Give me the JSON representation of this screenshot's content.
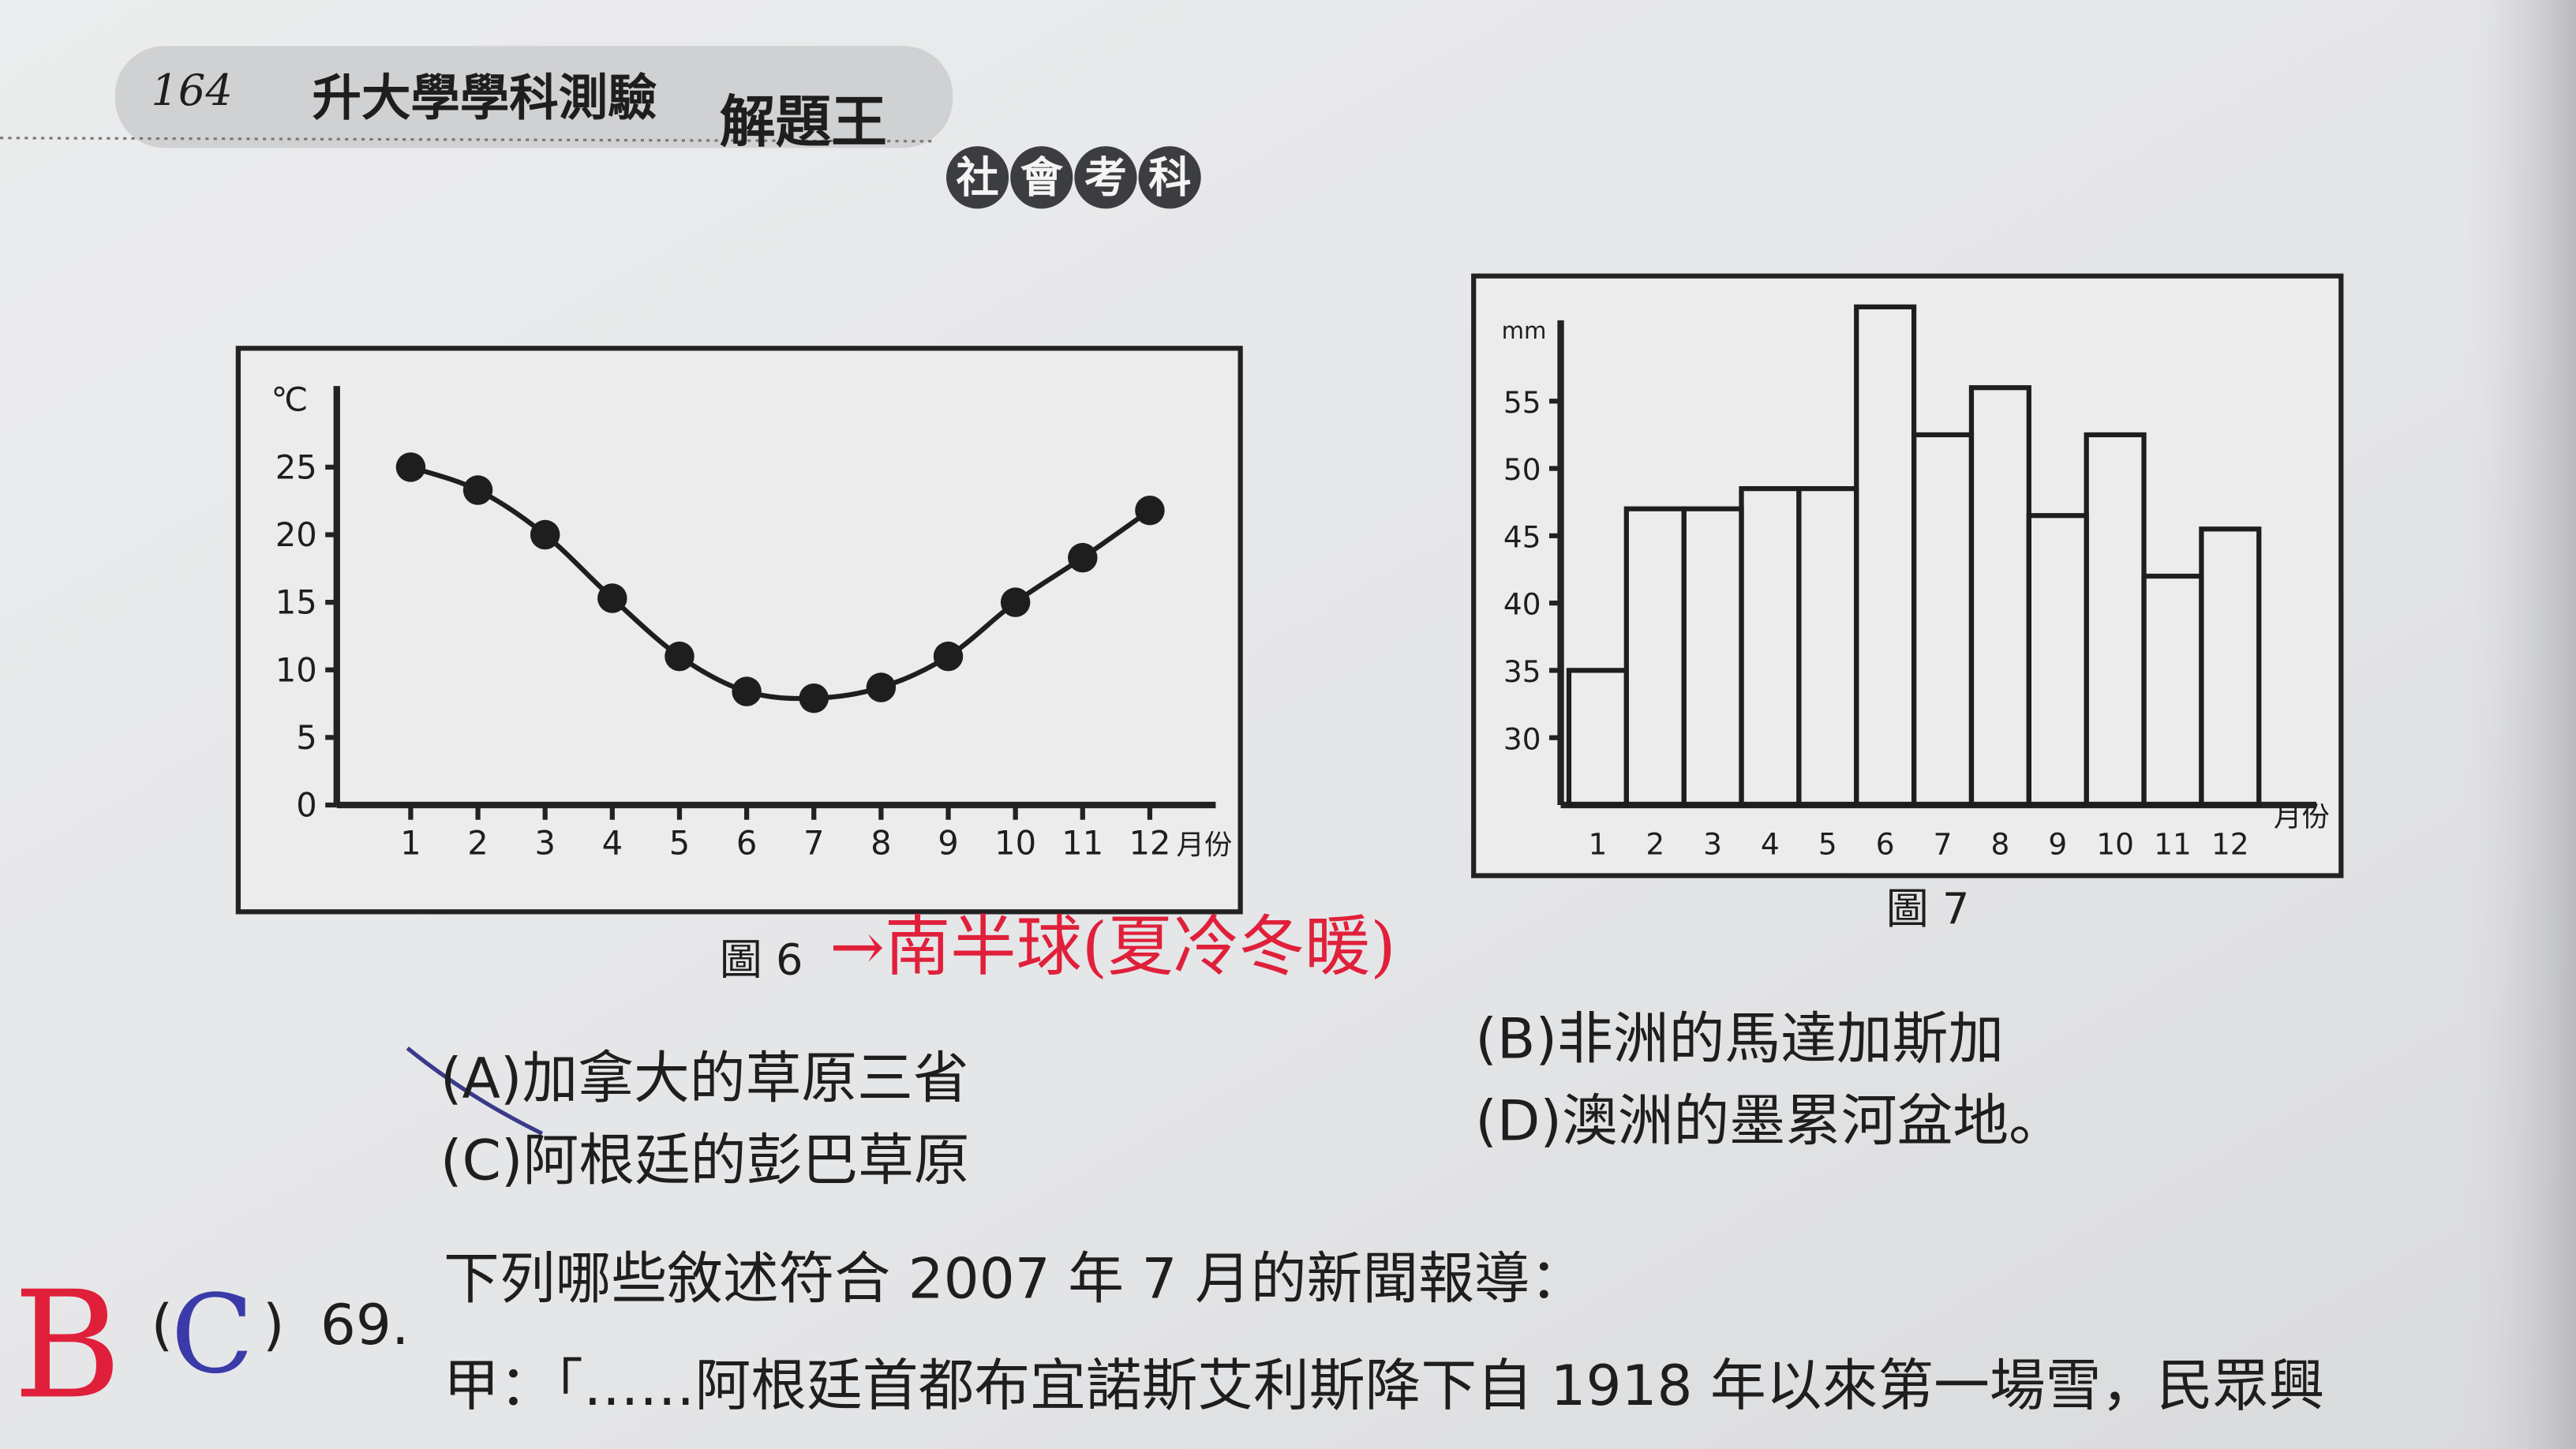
{
  "header": {
    "page_number": "164",
    "book_title": "升大學學科測驗",
    "series": "解題王",
    "subject": [
      "社",
      "會",
      "考",
      "科"
    ]
  },
  "chart_data": [
    {
      "type": "line",
      "title": "圖 6",
      "y_unit": "℃",
      "x_unit": "月份",
      "color": "#1e1e1e",
      "categories": [
        "1",
        "2",
        "3",
        "4",
        "5",
        "6",
        "7",
        "8",
        "9",
        "10",
        "11",
        "12"
      ],
      "values": [
        25,
        23.3,
        20,
        15.3,
        11,
        8.4,
        7.9,
        8.7,
        11,
        15,
        18.3,
        21.8
      ],
      "ylim": [
        0,
        31
      ],
      "yticks": [
        0,
        5,
        10,
        15,
        20,
        25
      ]
    },
    {
      "type": "bar",
      "title": "圖 7",
      "y_unit": "mm",
      "x_unit": "月份",
      "color": "#1e1e1e",
      "categories": [
        "1",
        "2",
        "3",
        "4",
        "5",
        "6",
        "7",
        "8",
        "9",
        "10",
        "11",
        "12"
      ],
      "values": [
        35,
        47,
        47,
        48.5,
        48.5,
        62,
        52.5,
        56,
        46.5,
        52.5,
        42,
        45.5
      ],
      "ylim": [
        25,
        61
      ],
      "yticks": [
        30,
        35,
        40,
        45,
        50,
        55
      ]
    }
  ],
  "annotations": {
    "figure6_note": "→南半球(夏冷冬暖)",
    "answer_red": "B",
    "answer_blue": "C"
  },
  "options": [
    "(A)加拿大的草原三省",
    "(B)非洲的馬達加斯加",
    "(C)阿根廷的彭巴草原",
    "(D)澳洲的墨累河盆地。"
  ],
  "question": {
    "open": "(",
    "close": ")",
    "number": "69.",
    "stem": "下列哪些敘述符合 2007 年 7 月的新聞報導：",
    "line1": "甲：「……阿根廷首都布宜諾斯艾利斯降下自 1918 年以來第一場雪，民眾興"
  }
}
